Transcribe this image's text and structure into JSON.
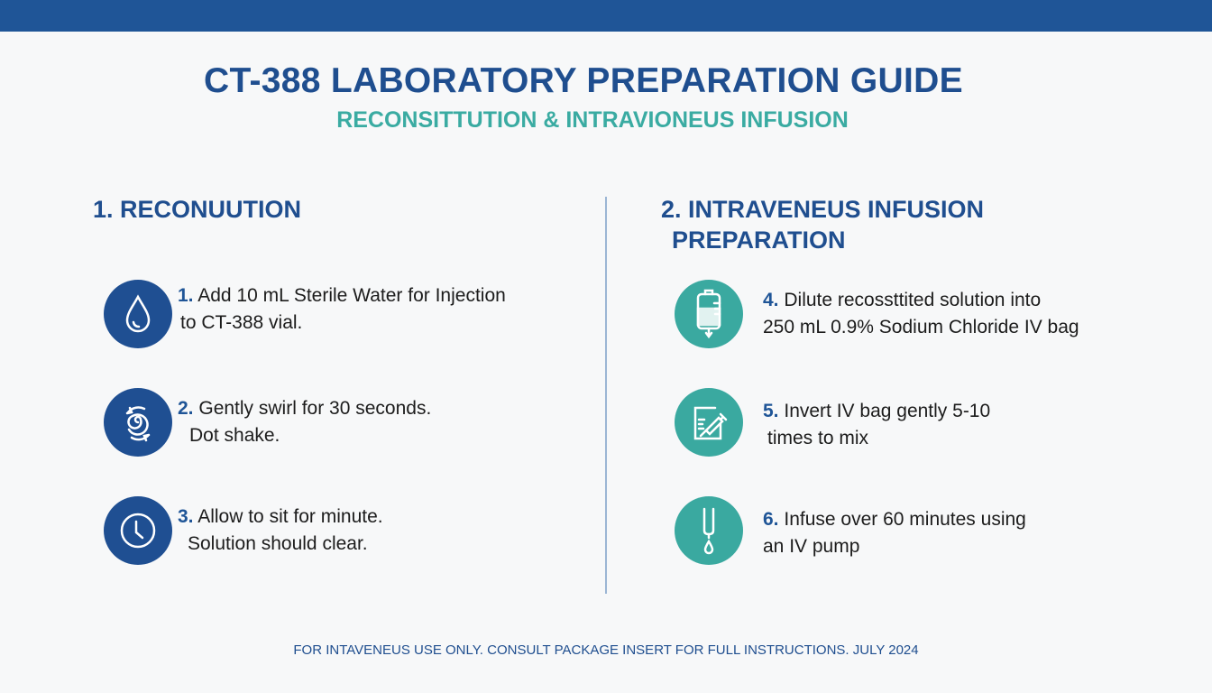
{
  "header": {
    "title": "CT-388 LABORATORY PREPARATION GUIDE",
    "subtitle": "RECONSITTUTION & INTRAVIONEUS INFUSION"
  },
  "left": {
    "heading": "1. RECONUUTION",
    "steps": [
      {
        "num": "1.",
        "line1": "Add 10 mL Sterile Water for Injection",
        "line2": "to CT-388 vial.",
        "icon": "water-drop-icon"
      },
      {
        "num": "2.",
        "line1": "Gently swirl for 30 seconds.",
        "line2": "Dot shake.",
        "icon": "swirl-icon"
      },
      {
        "num": "3.",
        "line1": "Allow to sit for minute.",
        "line2": "Solution should clear.",
        "icon": "clock-icon"
      }
    ]
  },
  "right": {
    "heading_line1": "2. INTRAVENEUS INFUSION",
    "heading_line2": "PREPARATION",
    "steps": [
      {
        "num": "4.",
        "line1": "Dilute recossttited solution into",
        "line2": "250 mL 0.9% Sodium Chloride IV bag",
        "icon": "iv-bag-icon"
      },
      {
        "num": "5.",
        "line1": "Invert IV bag gently 5-10",
        "line2": "times to mix",
        "icon": "syringe-icon"
      },
      {
        "num": "6.",
        "line1": "Infuse over 60 minutes using",
        "line2": "an IV pump",
        "icon": "iv-drip-icon"
      }
    ]
  },
  "footer": "FOR INTAVENEUS USE ONLY. CONSULT PACKAGE INSERT FOR FULL INSTRUCTIONS. JULY 2024",
  "colors": {
    "primary": "#1f4e8f",
    "teal": "#3aa9a0",
    "topbar": "#1f5597"
  }
}
